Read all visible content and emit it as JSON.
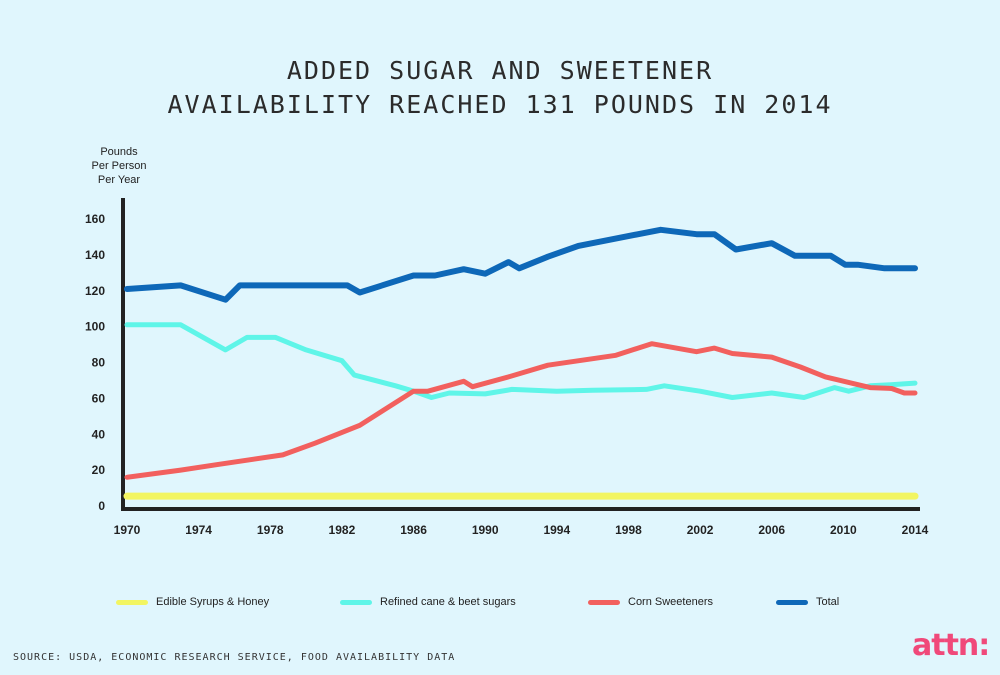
{
  "title_lines": [
    "ADDED SUGAR AND SWEETENER",
    "AVAILABILITY REACHED 131 POUNDS IN 2014"
  ],
  "ylabel_lines": [
    "Pounds",
    "Per Person",
    "Per Year"
  ],
  "source": "SOURCE: USDA, ECONOMIC RESEARCH SERVICE, FOOD AVAILABILITY DATA",
  "logo": "attn:",
  "chart_data": {
    "type": "line",
    "title": "ADDED SUGAR AND SWEETENER AVAILABILITY REACHED 131 POUNDS IN 2014",
    "ylabel": "Pounds Per Person Per Year",
    "xlabel": "",
    "xlim": [
      1970,
      2014
    ],
    "ylim": [
      0,
      170
    ],
    "x_ticks": [
      1970,
      1974,
      1978,
      1982,
      1986,
      1990,
      1994,
      1998,
      2002,
      2006,
      2010,
      2014
    ],
    "y_ticks": [
      0,
      20,
      40,
      60,
      80,
      100,
      120,
      140,
      160
    ],
    "grid": false,
    "legend_position": "bottom",
    "series": [
      {
        "name": "Edible Syrups & Honey",
        "color": "#f2f562",
        "points": [
          [
            1970,
            5.5
          ],
          [
            2014,
            5.5
          ]
        ]
      },
      {
        "name": "Refined cane & beet sugars",
        "color": "#5ff5e8",
        "points": [
          [
            1970,
            101
          ],
          [
            1973,
            101
          ],
          [
            1975.5,
            87
          ],
          [
            1976.7,
            94
          ],
          [
            1978.3,
            94
          ],
          [
            1980,
            87
          ],
          [
            1982,
            81
          ],
          [
            1982.7,
            73
          ],
          [
            1985,
            67
          ],
          [
            1986,
            64
          ],
          [
            1987,
            60.5
          ],
          [
            1988,
            63
          ],
          [
            1990,
            62.5
          ],
          [
            1991.5,
            65
          ],
          [
            1994,
            64
          ],
          [
            1996,
            64.5
          ],
          [
            1999,
            65
          ],
          [
            2000,
            67
          ],
          [
            2002,
            64
          ],
          [
            2003.8,
            60.5
          ],
          [
            2006,
            63
          ],
          [
            2007.8,
            60.5
          ],
          [
            2009.5,
            66
          ],
          [
            2010.3,
            64
          ],
          [
            2011.5,
            67
          ],
          [
            2012.5,
            67.5
          ],
          [
            2014,
            68.5
          ]
        ]
      },
      {
        "name": "Corn Sweeteners",
        "color": "#f2605e",
        "points": [
          [
            1970,
            16
          ],
          [
            1973,
            20
          ],
          [
            1975,
            23
          ],
          [
            1978.7,
            28.5
          ],
          [
            1980.5,
            35
          ],
          [
            1983,
            45
          ],
          [
            1986,
            64
          ],
          [
            1986.8,
            64
          ],
          [
            1988.8,
            69.5
          ],
          [
            1989.3,
            66.5
          ],
          [
            1991.3,
            72
          ],
          [
            1993.5,
            78.5
          ],
          [
            1997.3,
            84
          ],
          [
            1999.3,
            90.5
          ],
          [
            2001.8,
            86
          ],
          [
            2002.8,
            88
          ],
          [
            2003.8,
            85
          ],
          [
            2006,
            83
          ],
          [
            2007.6,
            77.5
          ],
          [
            2009,
            72
          ],
          [
            2011.5,
            66
          ],
          [
            2012.7,
            65.5
          ],
          [
            2013.4,
            63
          ],
          [
            2014,
            63
          ]
        ]
      },
      {
        "name": "Total",
        "color": "#0e68b8",
        "points": [
          [
            1970,
            121
          ],
          [
            1973,
            123
          ],
          [
            1975.5,
            115
          ],
          [
            1976.3,
            123
          ],
          [
            1982.3,
            123
          ],
          [
            1983,
            119
          ],
          [
            1986,
            128.5
          ],
          [
            1987.2,
            128.5
          ],
          [
            1988.8,
            132
          ],
          [
            1990,
            129.5
          ],
          [
            1991.3,
            136
          ],
          [
            1991.9,
            132.5
          ],
          [
            1993.5,
            139
          ],
          [
            1995.2,
            145
          ],
          [
            1997.5,
            149.5
          ],
          [
            1999.8,
            154
          ],
          [
            2001.8,
            151.5
          ],
          [
            2002.8,
            151.5
          ],
          [
            2004,
            143
          ],
          [
            2006,
            146.5
          ],
          [
            2007.3,
            139.5
          ],
          [
            2009.3,
            139.5
          ],
          [
            2010.1,
            134.5
          ],
          [
            2010.8,
            134.5
          ],
          [
            2012.3,
            132.5
          ],
          [
            2014,
            132.5
          ]
        ]
      }
    ]
  }
}
